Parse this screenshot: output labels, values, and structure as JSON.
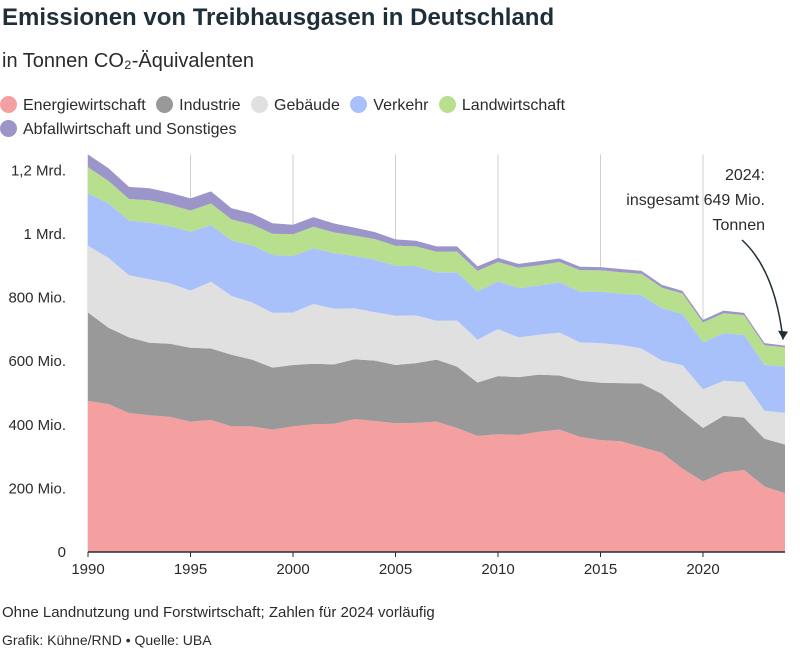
{
  "title": "Emissionen von Treibhausgasen in Deutschland",
  "subtitle": "in Tonnen CO₂-Äquivalenten",
  "footnote": "Ohne Landnutzung und Forstwirtschaft; Zahlen für 2024 vorläufig",
  "source": "Grafik: Kühne/RND • Quelle: UBA",
  "chart_data": {
    "type": "area",
    "stacked": true,
    "x": [
      1990,
      1991,
      1992,
      1993,
      1994,
      1995,
      1996,
      1997,
      1998,
      1999,
      2000,
      2001,
      2002,
      2003,
      2004,
      2005,
      2006,
      2007,
      2008,
      2009,
      2010,
      2011,
      2012,
      2013,
      2014,
      2015,
      2016,
      2017,
      2018,
      2019,
      2020,
      2021,
      2022,
      2023,
      2024
    ],
    "ylim": [
      0,
      1250
    ],
    "yticks": [
      0,
      200,
      400,
      600,
      800,
      1000,
      1200
    ],
    "ytick_labels": [
      "0",
      "200 Mio.",
      "400 Mio.",
      "600 Mio.",
      "800 Mio.",
      "1 Mrd.",
      "1,2 Mrd."
    ],
    "xticks": [
      1990,
      1995,
      2000,
      2005,
      2010,
      2015,
      2020
    ],
    "xtick_labels": [
      "1990",
      "1995",
      "2000",
      "2005",
      "2010",
      "2015",
      "2020"
    ],
    "grid": "vertical",
    "unit": "Mio. Tonnen",
    "series": [
      {
        "name": "Energiewirtschaft",
        "color": "#f4a0a0",
        "values": [
          475,
          465,
          437,
          430,
          425,
          410,
          415,
          395,
          395,
          385,
          395,
          402,
          403,
          418,
          412,
          405,
          406,
          410,
          390,
          365,
          370,
          368,
          378,
          385,
          362,
          352,
          348,
          330,
          312,
          262,
          222,
          250,
          258,
          206,
          185
        ]
      },
      {
        "name": "Industrie",
        "color": "#999999",
        "values": [
          278,
          240,
          238,
          228,
          230,
          232,
          225,
          225,
          210,
          195,
          193,
          190,
          187,
          188,
          190,
          183,
          188,
          195,
          193,
          168,
          183,
          182,
          180,
          170,
          177,
          180,
          183,
          200,
          185,
          180,
          168,
          178,
          165,
          150,
          153
        ]
      },
      {
        "name": "Gebäude",
        "color": "#e0e0e0",
        "values": [
          210,
          220,
          195,
          200,
          190,
          180,
          210,
          185,
          180,
          172,
          165,
          188,
          175,
          160,
          152,
          155,
          150,
          122,
          145,
          135,
          148,
          125,
          125,
          135,
          120,
          125,
          120,
          110,
          105,
          145,
          122,
          110,
          112,
          88,
          100
        ]
      },
      {
        "name": "Verkehr",
        "color": "#a9c1fb",
        "values": [
          165,
          172,
          172,
          178,
          180,
          185,
          178,
          175,
          180,
          182,
          178,
          175,
          175,
          165,
          165,
          157,
          155,
          153,
          152,
          152,
          150,
          155,
          155,
          158,
          160,
          162,
          162,
          168,
          164,
          162,
          147,
          150,
          148,
          145,
          145
        ]
      },
      {
        "name": "Landwirtschaft",
        "color": "#b7df8e",
        "values": [
          82,
          70,
          68,
          70,
          67,
          67,
          68,
          66,
          65,
          67,
          68,
          68,
          65,
          64,
          65,
          63,
          62,
          64,
          65,
          64,
          61,
          64,
          64,
          64,
          67,
          67,
          67,
          67,
          65,
          64,
          63,
          63,
          62,
          61,
          61
        ]
      },
      {
        "name": "Abfallwirtschaft und Sonstiges",
        "color": "#9b95c9",
        "values": [
          40,
          40,
          38,
          38,
          38,
          38,
          38,
          35,
          35,
          33,
          30,
          30,
          28,
          25,
          22,
          20,
          18,
          17,
          16,
          14,
          13,
          12,
          12,
          11,
          11,
          10,
          10,
          9,
          9,
          8,
          8,
          8,
          7,
          7,
          5
        ]
      }
    ],
    "annotation": {
      "lines": [
        "2024:",
        "insgesamt 649 Mio.",
        "Tonnen"
      ],
      "x": 2024,
      "y": 649
    }
  }
}
